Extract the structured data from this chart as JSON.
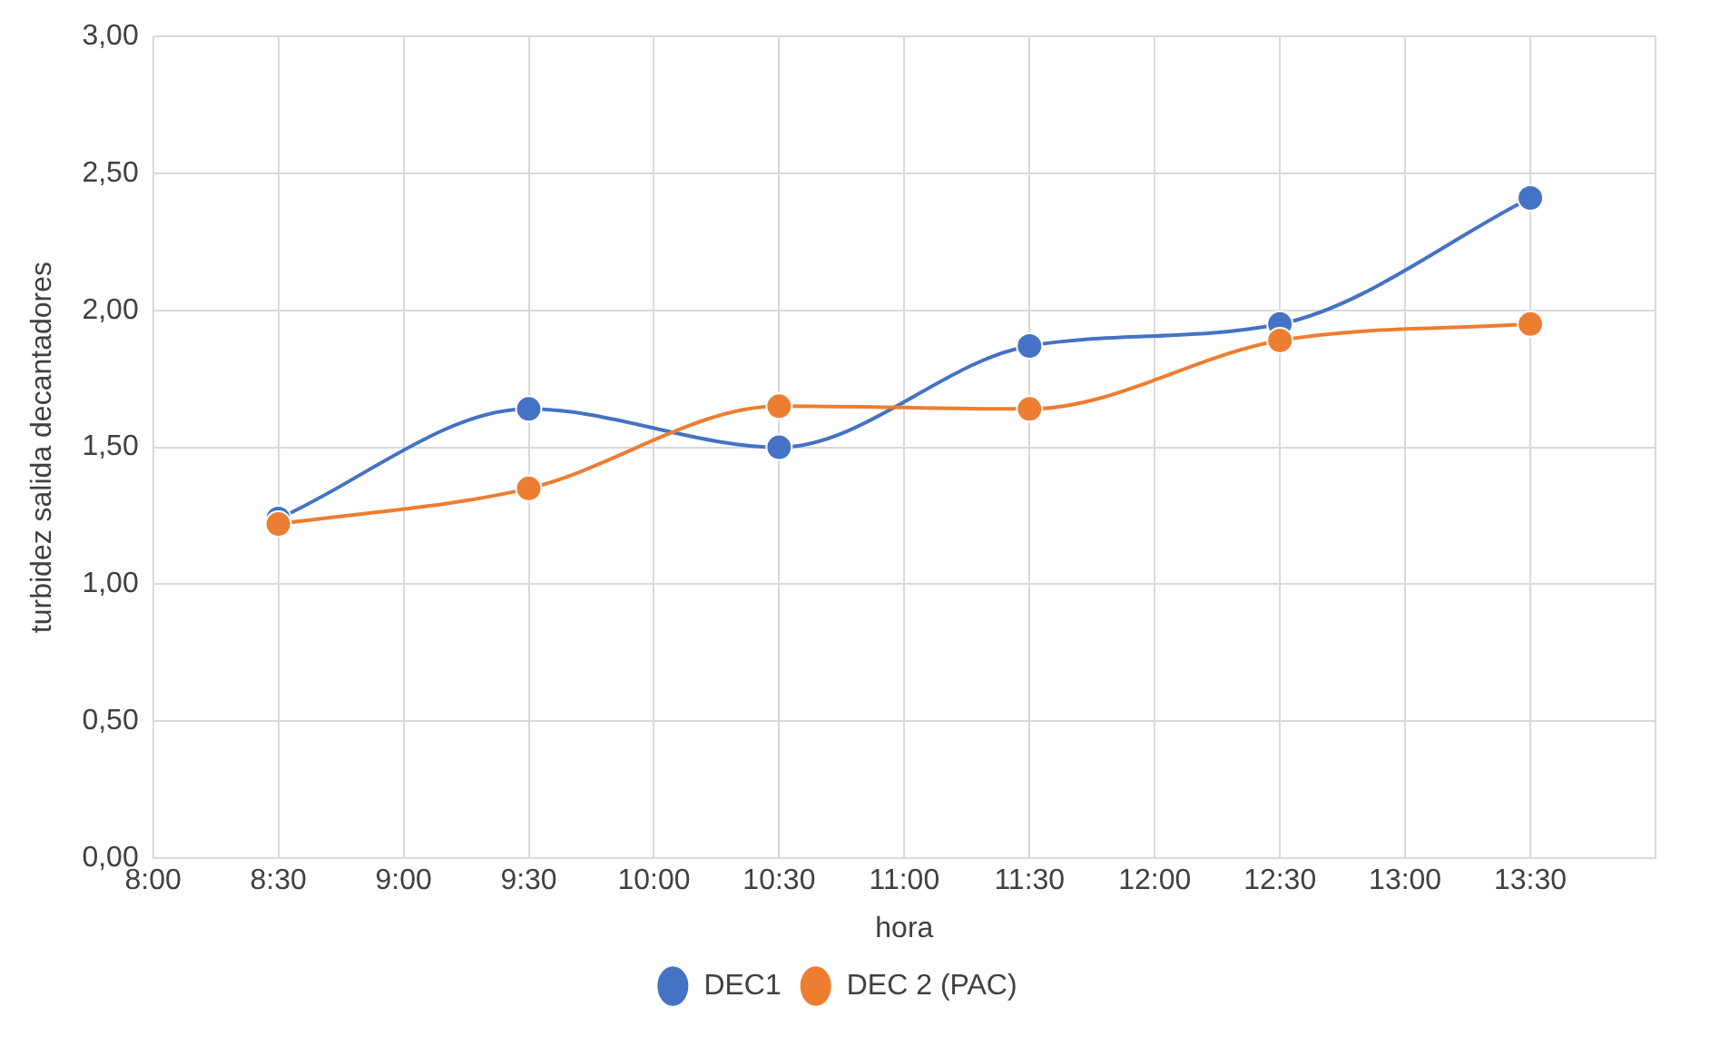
{
  "chart_data": {
    "type": "line",
    "xlabel": "hora",
    "ylabel": "turbidez salida decantadores",
    "x": [
      8.5,
      9.5,
      10.5,
      11.5,
      12.5,
      13.5
    ],
    "series": [
      {
        "name": "DEC1",
        "color": "#4472c4",
        "values": [
          1.24,
          1.64,
          1.5,
          1.87,
          1.95,
          2.41
        ]
      },
      {
        "name": "DEC 2 (PAC)",
        "color": "#ed7d31",
        "values": [
          1.22,
          1.35,
          1.65,
          1.64,
          1.89,
          1.95
        ]
      }
    ],
    "xlim": [
      8,
      14
    ],
    "xticks": [
      {
        "value": 8,
        "label": "8:00"
      },
      {
        "value": 8.5,
        "label": "8:30"
      },
      {
        "value": 9,
        "label": "9:00"
      },
      {
        "value": 9.5,
        "label": "9:30"
      },
      {
        "value": 10,
        "label": "10:00"
      },
      {
        "value": 10.5,
        "label": "10:30"
      },
      {
        "value": 11,
        "label": "11:00"
      },
      {
        "value": 11.5,
        "label": "11:30"
      },
      {
        "value": 12,
        "label": "12:00"
      },
      {
        "value": 12.5,
        "label": "12:30"
      },
      {
        "value": 13,
        "label": "13:00"
      },
      {
        "value": 13.5,
        "label": "13:30"
      },
      {
        "value": 14,
        "label": null
      }
    ],
    "ylim": [
      0,
      3
    ],
    "yticks": [
      {
        "value": 0,
        "label": "0,00"
      },
      {
        "value": 0.5,
        "label": "0,50"
      },
      {
        "value": 1,
        "label": "1,00"
      },
      {
        "value": 1.5,
        "label": "1,50"
      },
      {
        "value": 2,
        "label": "2,00"
      },
      {
        "value": 2.5,
        "label": "2,50"
      },
      {
        "value": 3,
        "label": "3,00"
      }
    ],
    "grid": true,
    "legend": "bottom",
    "marker": "circle",
    "line_style": "solid"
  }
}
